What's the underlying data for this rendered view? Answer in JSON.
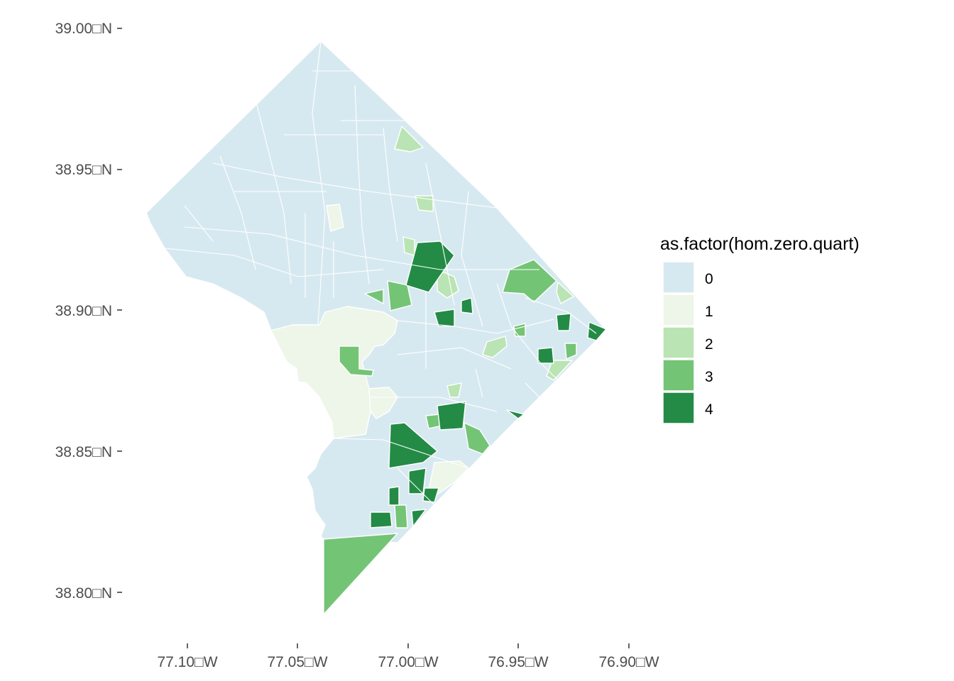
{
  "map": {
    "y_axis": {
      "ticks": [
        "39.00□N",
        "38.95□N",
        "38.90□N",
        "38.85□N",
        "38.80□N"
      ]
    },
    "x_axis": {
      "ticks": [
        "77.10□W",
        "77.05□W",
        "77.00□W",
        "76.95□W",
        "76.90□W"
      ]
    }
  },
  "legend": {
    "title": "as.factor(hom.zero.quart)",
    "items": [
      {
        "label": "0",
        "color": "#d7e9f0"
      },
      {
        "label": "1",
        "color": "#edf6e8"
      },
      {
        "label": "2",
        "color": "#bae4b3"
      },
      {
        "label": "3",
        "color": "#74c476"
      },
      {
        "label": "4",
        "color": "#238b45"
      }
    ]
  },
  "colors": {
    "boundary_stroke": "#ffffff",
    "axis_text": "#4d4d4d",
    "tick": "#333333"
  }
}
